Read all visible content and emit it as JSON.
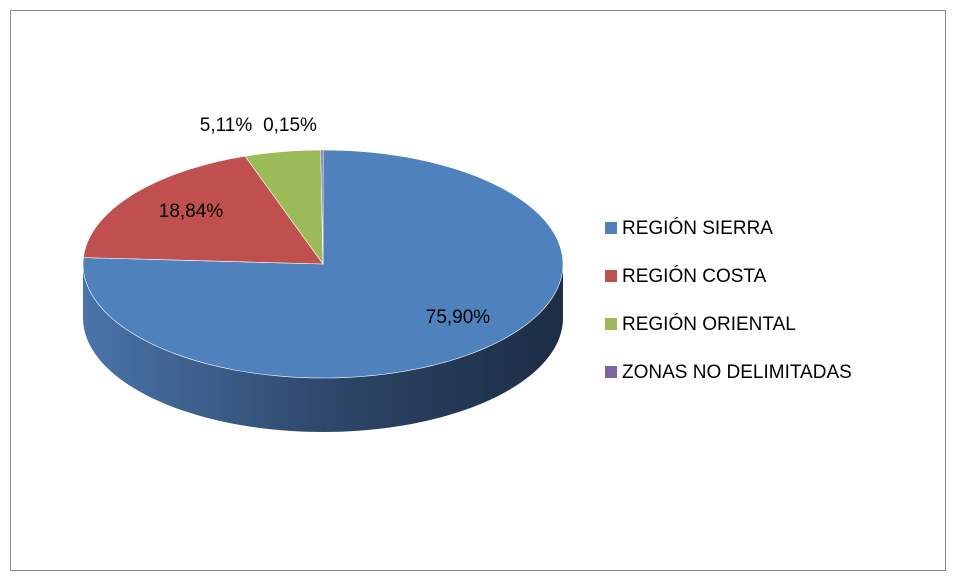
{
  "chart_data": {
    "type": "pie",
    "categories": [
      "REGIÓN SIERRA",
      "REGIÓN COSTA",
      "REGIÓN ORIENTAL",
      "ZONAS NO DELIMITADAS"
    ],
    "values": [
      75.9,
      18.84,
      5.11,
      0.15
    ],
    "value_labels": [
      "75,90%",
      "18,84%",
      "5,11%",
      "0,15%"
    ],
    "colors": [
      "#4f81bd",
      "#c0504d",
      "#9bbb59",
      "#8064a2"
    ],
    "legend": "right"
  }
}
